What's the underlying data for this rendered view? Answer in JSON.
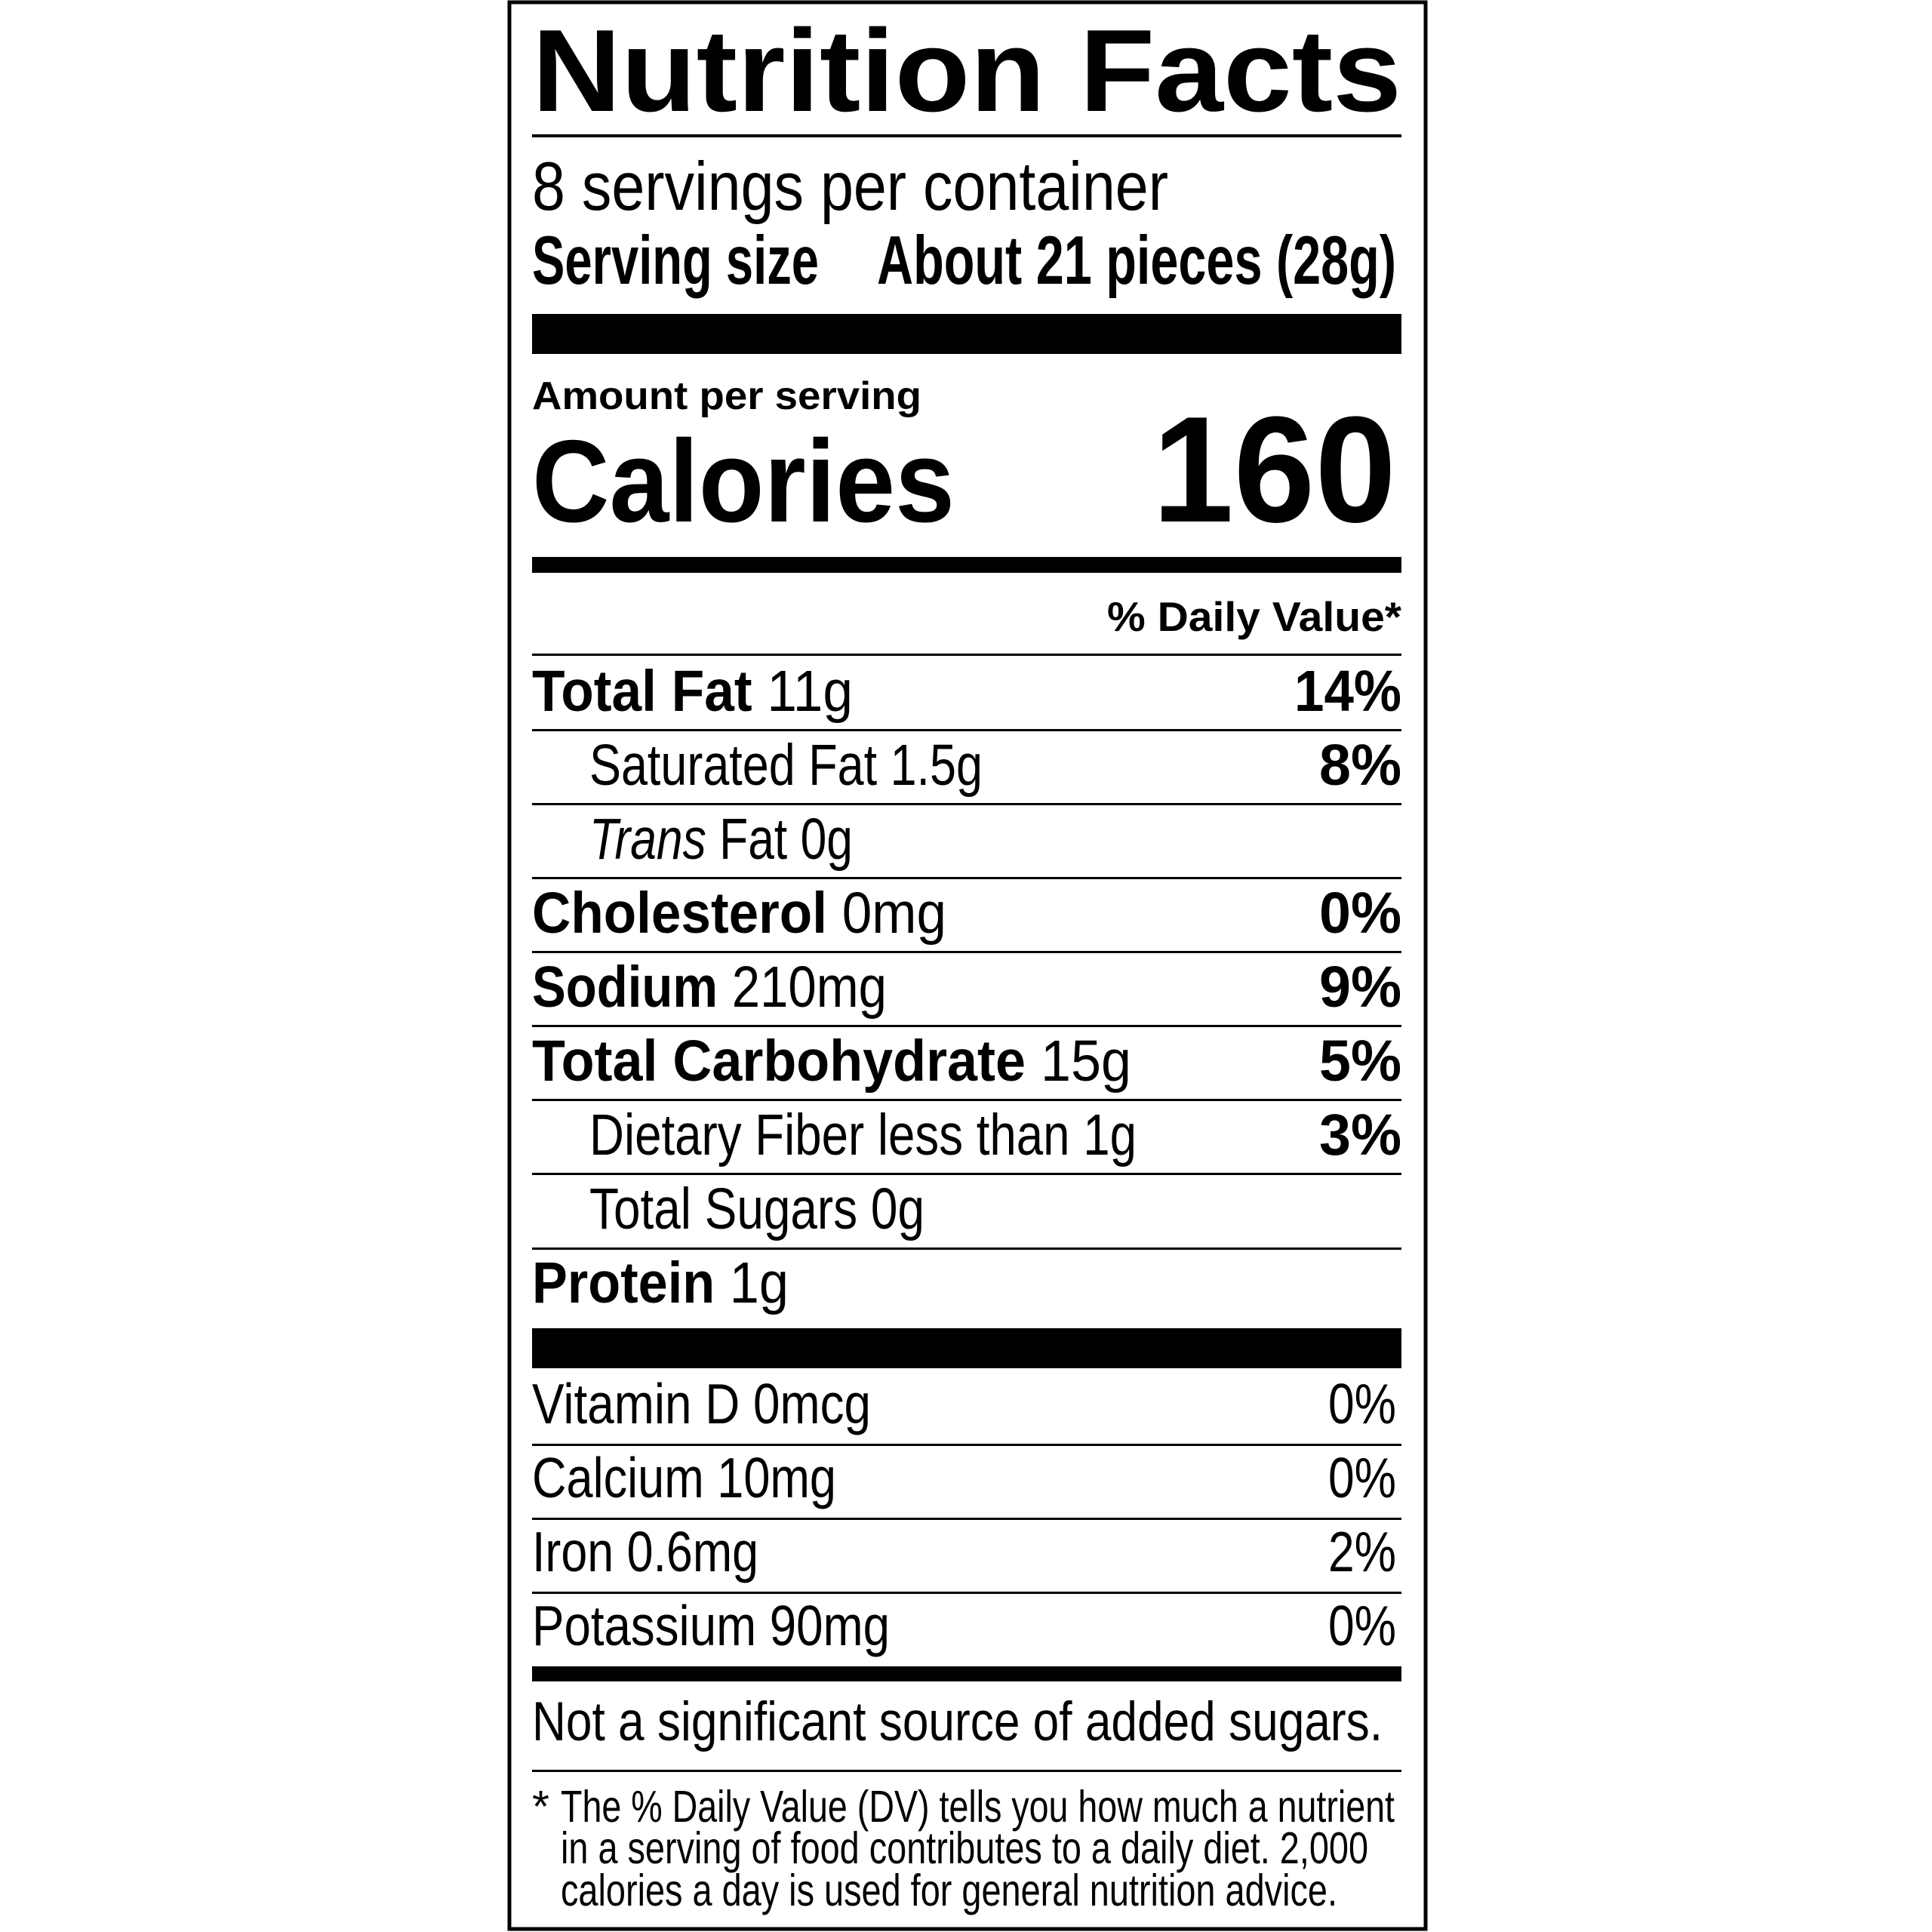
{
  "title": "Nutrition Facts",
  "servings": "8 servings per container",
  "serving_size": {
    "label": "Serving size",
    "value": "About 21 pieces (28g)"
  },
  "amount_per_serving": "Amount per serving",
  "calories": {
    "label": "Calories",
    "value": 160
  },
  "dv_header": "% Daily Value*",
  "nutrients": [
    {
      "name": "Total Fat",
      "amount": "11g",
      "dv": "14%"
    },
    {
      "name": "Saturated Fat",
      "amount": "1.5g",
      "dv": "8%"
    },
    {
      "name_italic": "Trans",
      "name": "Fat",
      "amount": "0g"
    },
    {
      "name": "Cholesterol",
      "amount": "0mg",
      "dv": "0%"
    },
    {
      "name": "Sodium",
      "amount": "210mg",
      "dv": "9%"
    },
    {
      "name": "Total Carbohydrate",
      "amount": "15g",
      "dv": "5%"
    },
    {
      "name": "Dietary Fiber",
      "amount": "less than 1g",
      "dv": "3%"
    },
    {
      "name": "Total Sugars",
      "amount": "0g"
    },
    {
      "name": "Protein",
      "amount": "1g"
    }
  ],
  "vitamins": [
    {
      "name": "Vitamin D",
      "amount": "0mcg",
      "dv": "0%"
    },
    {
      "name": "Calcium",
      "amount": "10mg",
      "dv": "0%"
    },
    {
      "name": "Iron",
      "amount": "0.6mg",
      "dv": "2%"
    },
    {
      "name": "Potassium",
      "amount": "90mg",
      "dv": "0%"
    }
  ],
  "note": "Not a significant source of added sugars.",
  "footnote": {
    "marker": "*",
    "lines": [
      "The % Daily Value (DV) tells you how much a nutrient",
      "in a serving of food contributes to a daily diet. 2,000",
      "calories a day is used for general nutrition advice."
    ]
  }
}
